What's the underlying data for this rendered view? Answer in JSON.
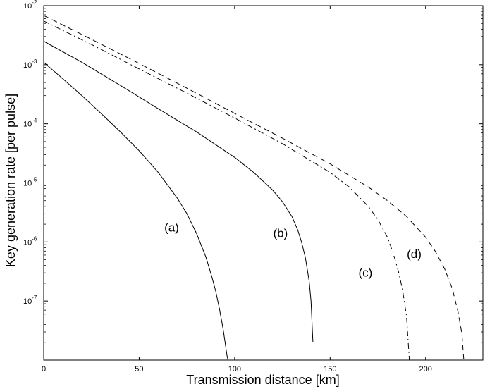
{
  "chart_data": {
    "type": "line",
    "xlabel": "Transmission distance [km]",
    "ylabel": "Key generation rate [per pulse]",
    "xlim": [
      0,
      230
    ],
    "ylim": [
      1e-08,
      0.01
    ],
    "yscale": "log",
    "grid": false,
    "x_ticks": [
      0,
      50,
      100,
      150,
      200
    ],
    "x_tick_labels": [
      "0",
      "50",
      "100",
      "150",
      "200"
    ],
    "y_ticks": [
      {
        "value": 1e-07,
        "base": "10",
        "exp": "-7"
      },
      {
        "value": 1e-06,
        "base": "10",
        "exp": "-6"
      },
      {
        "value": 1e-05,
        "base": "10",
        "exp": "-5"
      },
      {
        "value": 0.0001,
        "base": "10",
        "exp": "-4"
      },
      {
        "value": 0.001,
        "base": "10",
        "exp": "-3"
      },
      {
        "value": 0.01,
        "base": "10",
        "exp": "-2"
      }
    ],
    "series": [
      {
        "label": "(a)",
        "style": "solid",
        "x": [
          0,
          10,
          20,
          30,
          40,
          50,
          60,
          70,
          75,
          80,
          85,
          88,
          90,
          92,
          94,
          95,
          96,
          96.5
        ],
        "y": [
          0.0011,
          0.00058,
          0.0003,
          0.00015,
          7.4e-05,
          3.5e-05,
          1.5e-05,
          5.5e-06,
          3e-06,
          1.4e-06,
          5.5e-07,
          2.6e-07,
          1.5e-07,
          7.5e-08,
          3.3e-08,
          2e-08,
          1.2e-08,
          1e-08
        ]
      },
      {
        "label": "(b)",
        "style": "solid",
        "x": [
          0,
          20,
          40,
          60,
          80,
          100,
          110,
          120,
          125,
          130,
          133,
          135,
          137,
          139,
          140,
          141
        ],
        "y": [
          0.0025,
          0.0011,
          0.00045,
          0.00018,
          7.3e-05,
          2.7e-05,
          1.5e-05,
          7.5e-06,
          4.8e-06,
          2.7e-06,
          1.6e-06,
          1e-06,
          5.5e-07,
          2.2e-07,
          1e-07,
          2e-08
        ]
      },
      {
        "label": "(c)",
        "style": "dashdot",
        "x": [
          0,
          25,
          50,
          75,
          100,
          125,
          150,
          160,
          170,
          175,
          180,
          183,
          186,
          188,
          190,
          191.5
        ],
        "y": [
          0.0055,
          0.0022,
          0.00085,
          0.00033,
          0.000125,
          4.6e-05,
          1.5e-05,
          8.5e-06,
          4e-06,
          2.4e-06,
          1.2e-06,
          6.5e-07,
          3e-07,
          1.5e-07,
          5.5e-08,
          1e-08
        ]
      },
      {
        "label": "(d)",
        "style": "dashed",
        "x": [
          0,
          25,
          50,
          75,
          100,
          125,
          150,
          170,
          180,
          190,
          200,
          205,
          210,
          214,
          217,
          219,
          220
        ],
        "y": [
          0.0068,
          0.0027,
          0.00105,
          0.0004,
          0.00015,
          5.7e-05,
          2.1e-05,
          8.5e-06,
          5e-06,
          2.7e-06,
          1.2e-06,
          7e-07,
          3.5e-07,
          1.6e-07,
          6.5e-08,
          2.8e-08,
          1e-08
        ]
      }
    ],
    "annotations": [
      {
        "text": "(a)",
        "x": 67,
        "y": 1.5e-06
      },
      {
        "text": "(b)",
        "x": 124,
        "y": 1.2e-06
      },
      {
        "text": "(c)",
        "x": 168.5,
        "y": 2.6e-07
      },
      {
        "text": "(d)",
        "x": 194,
        "y": 5.4e-07
      }
    ]
  }
}
